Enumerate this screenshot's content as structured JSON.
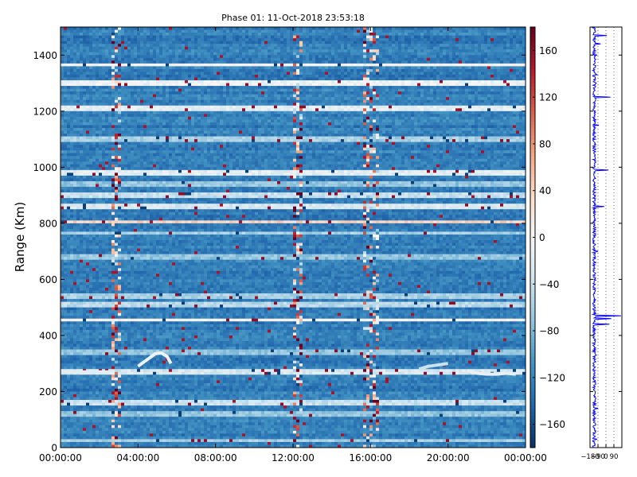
{
  "chart_data": [
    {
      "type": "heatmap",
      "title": "Phase 01: 11-Oct-2018 23:53:18",
      "xlabel": "",
      "ylabel": "Range (Km)",
      "x_ticks": [
        "00:00:00",
        "04:00:00",
        "08:00:00",
        "12:00:00",
        "16:00:00",
        "20:00:00",
        "00:00:00"
      ],
      "xlim_hours": [
        0,
        24
      ],
      "y_ticks": [
        0,
        200,
        400,
        600,
        800,
        1000,
        1200,
        1400
      ],
      "ylim": [
        0,
        1500
      ],
      "colormap": "RdBu_r",
      "colorbar": {
        "range": [
          -180,
          180
        ],
        "ticks": [
          "160",
          "120",
          "80",
          "40",
          "0",
          "−40",
          "−80",
          "−120",
          "−160"
        ],
        "tick_values": [
          160,
          120,
          80,
          40,
          0,
          -40,
          -80,
          -120,
          -160
        ]
      },
      "background_value": -125,
      "bright_rows": [
        {
          "range": 1365,
          "value": 0
        },
        {
          "range": 1300,
          "value": -10
        },
        {
          "range": 1210,
          "value": -20
        },
        {
          "range": 1100,
          "value": -60
        },
        {
          "range": 980,
          "value": -20
        },
        {
          "range": 940,
          "value": -70
        },
        {
          "range": 900,
          "value": -40
        },
        {
          "range": 860,
          "value": -30
        },
        {
          "range": 805,
          "value": 40
        },
        {
          "range": 765,
          "value": -60
        },
        {
          "range": 680,
          "value": -70
        },
        {
          "range": 540,
          "value": -60
        },
        {
          "range": 510,
          "value": -50
        },
        {
          "range": 455,
          "value": 0
        },
        {
          "range": 340,
          "value": -70
        },
        {
          "range": 270,
          "value": -30
        },
        {
          "range": 160,
          "value": -40
        },
        {
          "range": 120,
          "value": -70
        },
        {
          "range": 25,
          "value": -60
        }
      ],
      "noisy_columns_hours": [
        2.8,
        12.3,
        15.8,
        16.2
      ],
      "features": [
        {
          "x_hours": [
            0,
            0.5,
            1.0,
            1.5,
            2.0,
            2.5
          ],
          "range": [
            270,
            270,
            270,
            270,
            270,
            270
          ],
          "value": -20
        },
        {
          "x_hours": [
            4.0,
            4.3,
            4.6,
            4.9,
            5.2,
            5.5,
            5.7
          ],
          "range": [
            290,
            305,
            320,
            335,
            338,
            325,
            300
          ],
          "value": -10
        },
        {
          "x_hours": [
            18.5,
            19.0,
            19.5,
            20.0
          ],
          "range": [
            280,
            290,
            295,
            300
          ],
          "value": -40
        },
        {
          "x_hours": [
            21.0,
            21.5,
            22.0,
            22.5,
            23.0,
            23.5
          ],
          "range": [
            275,
            265,
            262,
            262,
            265,
            262
          ],
          "value": -15
        }
      ]
    },
    {
      "type": "line",
      "xlim": [
        -180,
        180
      ],
      "x_ticks": [
        "−180",
        "−90",
        "0",
        "90"
      ],
      "x_tick_values": [
        -180,
        -90,
        0,
        90
      ],
      "ylim": [
        0,
        1500
      ],
      "grid": "vertical dotted",
      "series_color": "#0000ff",
      "baseline": -150,
      "spikes": [
        {
          "range": 1470,
          "value": 10
        },
        {
          "range": 1440,
          "value": -60
        },
        {
          "range": 1400,
          "value": -100
        },
        {
          "range": 1330,
          "value": -100
        },
        {
          "range": 1300,
          "value": -110
        },
        {
          "range": 1250,
          "value": 50
        },
        {
          "range": 1200,
          "value": -120
        },
        {
          "range": 1150,
          "value": -80
        },
        {
          "range": 1100,
          "value": -120
        },
        {
          "range": 990,
          "value": 30
        },
        {
          "range": 900,
          "value": -120
        },
        {
          "range": 860,
          "value": -20
        },
        {
          "range": 800,
          "value": -130
        },
        {
          "range": 700,
          "value": -90
        },
        {
          "range": 660,
          "value": -110
        },
        {
          "range": 560,
          "value": -120
        },
        {
          "range": 470,
          "value": 170
        },
        {
          "range": 460,
          "value": 60
        },
        {
          "range": 440,
          "value": 40
        },
        {
          "range": 380,
          "value": -120
        },
        {
          "range": 330,
          "value": -110
        },
        {
          "range": 270,
          "value": -130
        },
        {
          "range": 250,
          "value": -120
        },
        {
          "range": 200,
          "value": -120
        },
        {
          "range": 140,
          "value": -90
        },
        {
          "range": 70,
          "value": -130
        },
        {
          "range": 30,
          "value": -100
        }
      ]
    }
  ]
}
